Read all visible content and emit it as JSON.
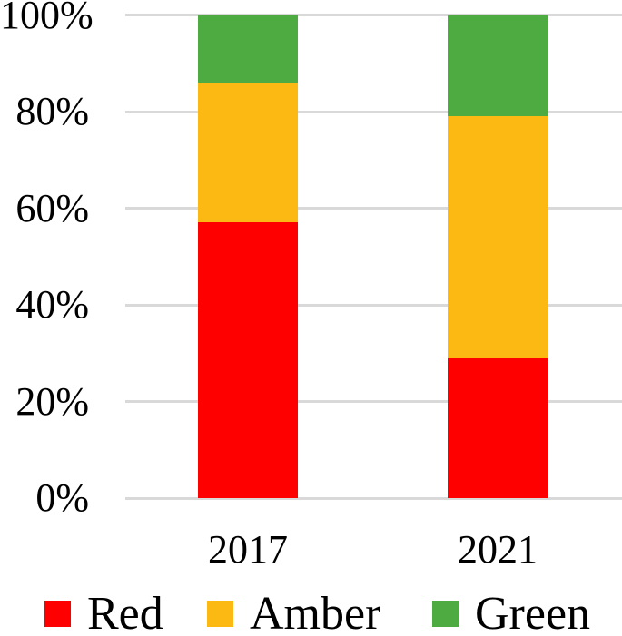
{
  "chart_data": {
    "type": "bar",
    "stacked": true,
    "orientation": "vertical",
    "categories": [
      "2017",
      "2021"
    ],
    "series": [
      {
        "name": "Red",
        "color": "#FF0000",
        "values": [
          57,
          29
        ]
      },
      {
        "name": "Amber",
        "color": "#FCB813",
        "values": [
          29,
          50
        ]
      },
      {
        "name": "Green",
        "color": "#4EAB41",
        "values": [
          14,
          21
        ]
      }
    ],
    "y_ticks": [
      "0%",
      "20%",
      "40%",
      "60%",
      "80%",
      "100%"
    ],
    "ylim": [
      0,
      100
    ],
    "xlabel": "",
    "ylabel": "",
    "title": "",
    "grid": true,
    "gridline_color": "#D9D9D9",
    "legend_position": "bottom",
    "legend_entries": [
      "Red",
      "Amber",
      "Green"
    ]
  }
}
